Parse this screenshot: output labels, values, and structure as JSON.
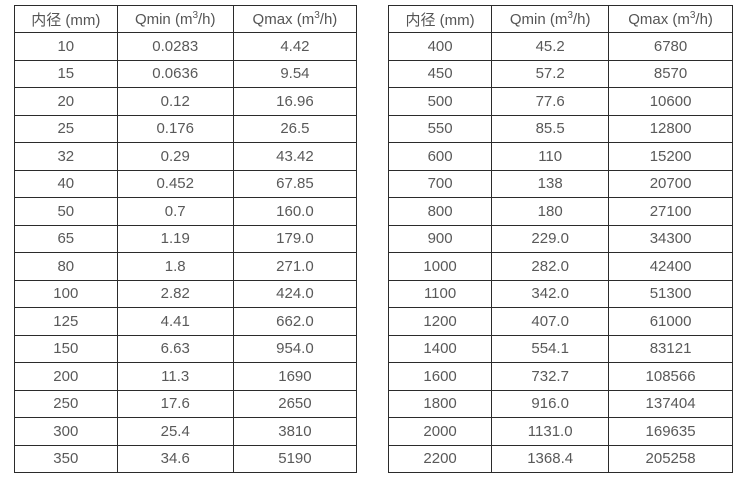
{
  "columns": {
    "diameter_label": "内径 (mm)",
    "qmin_prefix": "Qmin (m",
    "qmax_prefix": "Qmax (m",
    "sup_exponent": "3",
    "unit_suffix": "/h)"
  },
  "tables": [
    {
      "name": "small-diameters",
      "rows": [
        [
          "10",
          "0.0283",
          "4.42"
        ],
        [
          "15",
          "0.0636",
          "9.54"
        ],
        [
          "20",
          "0.12",
          "16.96"
        ],
        [
          "25",
          "0.176",
          "26.5"
        ],
        [
          "32",
          "0.29",
          "43.42"
        ],
        [
          "40",
          "0.452",
          "67.85"
        ],
        [
          "50",
          "0.7",
          "160.0"
        ],
        [
          "65",
          "1.19",
          "179.0"
        ],
        [
          "80",
          "1.8",
          "271.0"
        ],
        [
          "100",
          "2.82",
          "424.0"
        ],
        [
          "125",
          "4.41",
          "662.0"
        ],
        [
          "150",
          "6.63",
          "954.0"
        ],
        [
          "200",
          "11.3",
          "1690"
        ],
        [
          "250",
          "17.6",
          "2650"
        ],
        [
          "300",
          "25.4",
          "3810"
        ],
        [
          "350",
          "34.6",
          "5190"
        ]
      ]
    },
    {
      "name": "large-diameters",
      "rows": [
        [
          "400",
          "45.2",
          "6780"
        ],
        [
          "450",
          "57.2",
          "8570"
        ],
        [
          "500",
          "77.6",
          "10600"
        ],
        [
          "550",
          "85.5",
          "12800"
        ],
        [
          "600",
          "110",
          "15200"
        ],
        [
          "700",
          "138",
          "20700"
        ],
        [
          "800",
          "180",
          "27100"
        ],
        [
          "900",
          "229.0",
          "34300"
        ],
        [
          "1000",
          "282.0",
          "42400"
        ],
        [
          "1100",
          "342.0",
          "51300"
        ],
        [
          "1200",
          "407.0",
          "61000"
        ],
        [
          "1400",
          "554.1",
          "83121"
        ],
        [
          "1600",
          "732.7",
          "108566"
        ],
        [
          "1800",
          "916.0",
          "137404"
        ],
        [
          "2000",
          "1131.0",
          "169635"
        ],
        [
          "2200",
          "1368.4",
          "205258"
        ]
      ]
    }
  ],
  "colors": {
    "border": "#2b2b2b",
    "text": "#595959",
    "background": "#ffffff"
  }
}
